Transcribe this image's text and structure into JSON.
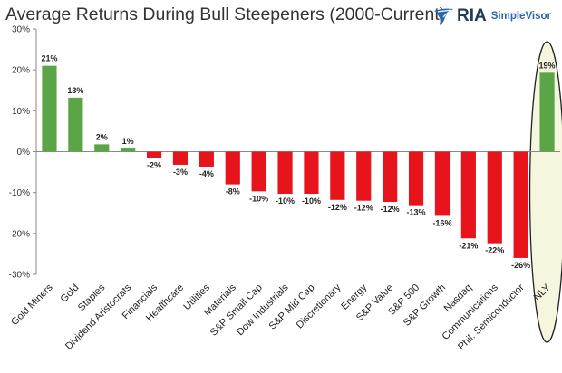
{
  "header": {
    "title": "Average Returns During Bull Steepeners (2000-Current)",
    "logo_text": "RIA",
    "logo_sub": "SimpleVisor"
  },
  "colors": {
    "positive": "#5aa546",
    "negative": "#e8141c",
    "highlight_fill": "#f6f6df",
    "highlight_stroke": "#222222"
  },
  "chart_data": {
    "type": "bar",
    "title": "Average Returns During Bull Steepeners (2000-Current)",
    "xlabel": "",
    "ylabel": "",
    "ylim": [
      -30,
      30
    ],
    "yticks": [
      30,
      20,
      10,
      0,
      -10,
      -20,
      -30
    ],
    "ytick_labels": [
      "30%",
      "20%",
      "10%",
      "0%",
      "-10%",
      "-20%",
      "-30%"
    ],
    "grid": false,
    "categories": [
      "Gold Miners",
      "Gold",
      "Staples",
      "Dividend Aristocrats",
      "Financials",
      "Healthcare",
      "Utilities",
      "Materials",
      "S&P Small Cap",
      "Dow Industrials",
      "S&P Mid Cap",
      "Discretionary",
      "Energy",
      "S&P Value",
      "S&P 500",
      "S&P Growth",
      "Nasdaq",
      "Communications",
      "Phil. Semiconductor",
      "NLY"
    ],
    "values": [
      21,
      13.2,
      1.8,
      0.8,
      -1.6,
      -3.2,
      -3.7,
      -8,
      -9.7,
      -10.3,
      -10.3,
      -11.8,
      -12,
      -12.3,
      -13.1,
      -15.7,
      -21.2,
      -22.4,
      -26,
      19.3
    ],
    "data_labels": [
      "21%",
      "13%",
      "2%",
      "1%",
      "-2%",
      "-3%",
      "-4%",
      "-8%",
      "-10%",
      "-10%",
      "-10%",
      "-12%",
      "-12%",
      "-12%",
      "-13%",
      "-16%",
      "-21%",
      "-22%",
      "-26%",
      "19%"
    ],
    "highlighted": "NLY"
  }
}
